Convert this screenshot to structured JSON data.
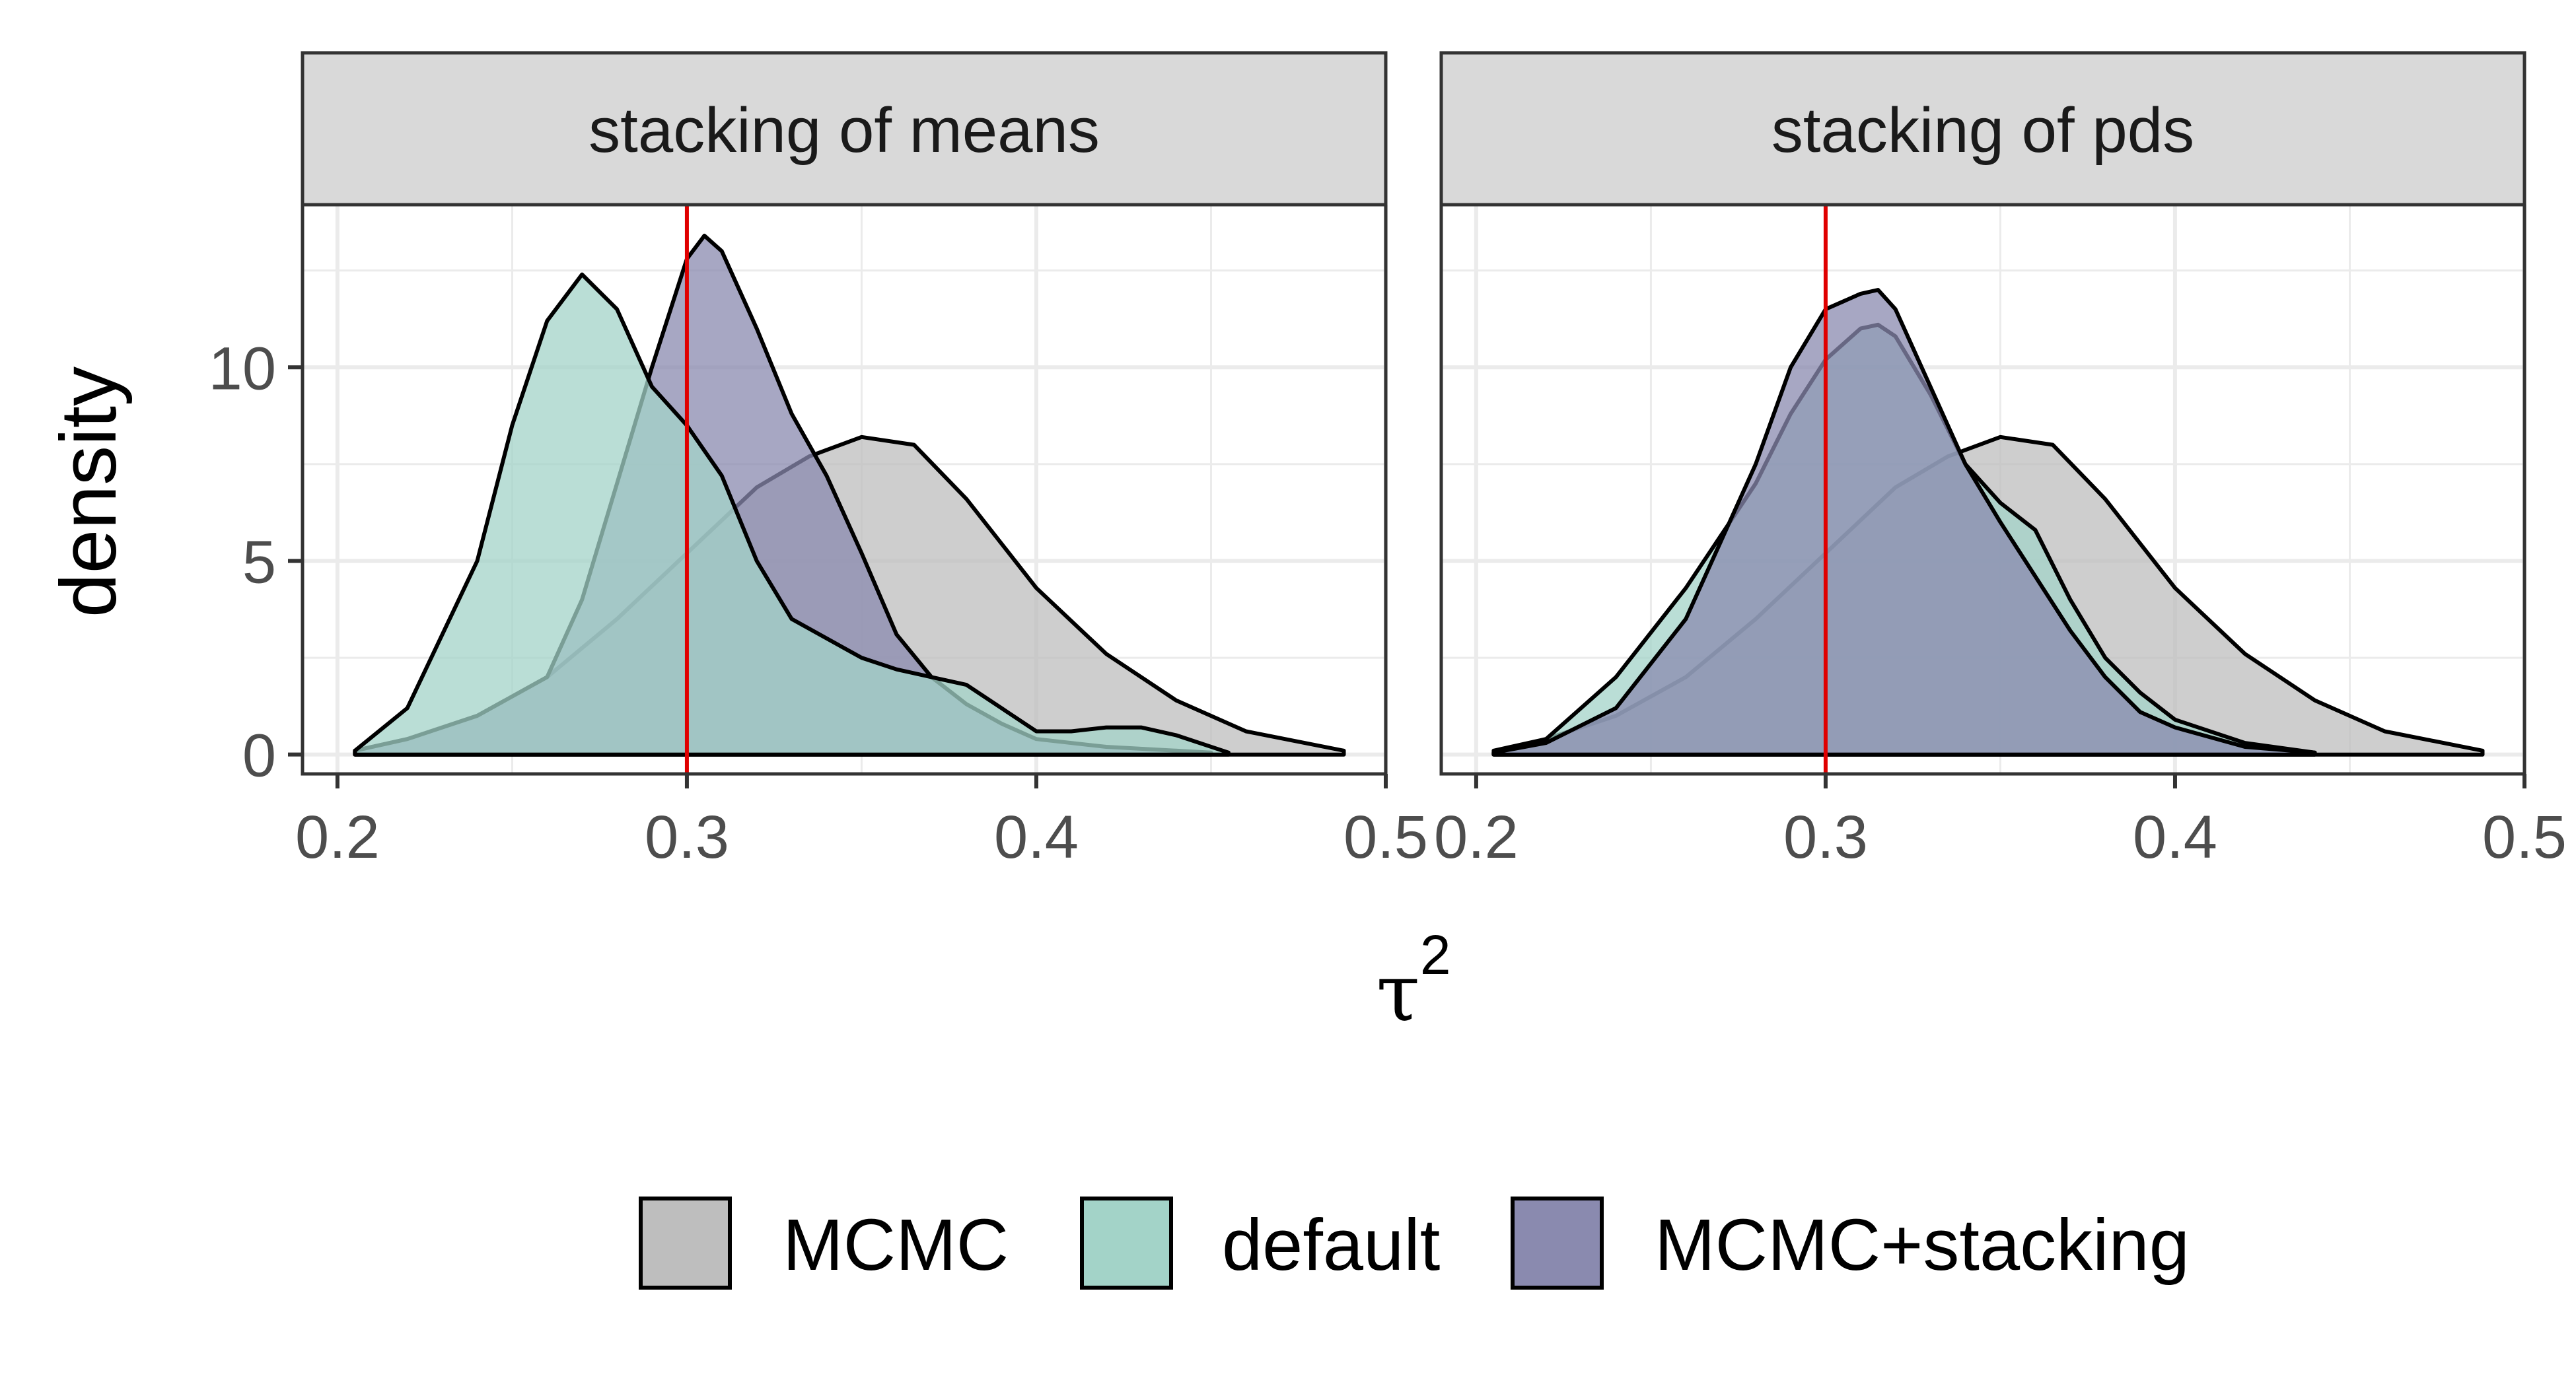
{
  "chart_data": {
    "type": "area",
    "title": "",
    "xlabel_symbol": "τ",
    "xlabel_superscript": "2",
    "ylabel": "density",
    "xlim": [
      0.19,
      0.5
    ],
    "ylim": [
      -0.5,
      14.2
    ],
    "x_ticks": [
      0.2,
      0.3,
      0.4,
      0.5
    ],
    "x_tick_labels": [
      "0.2",
      "0.3",
      "0.4",
      "0.5"
    ],
    "y_ticks": [
      0,
      5,
      10
    ],
    "y_tick_labels": [
      "0",
      "5",
      "10"
    ],
    "reference_line": {
      "x": 0.3,
      "color": "#e00000"
    },
    "legend": [
      {
        "name": "MCMC",
        "color": "#bebebe"
      },
      {
        "name": "default",
        "color": "#a3d3c8"
      },
      {
        "name": "MCMC+stacking",
        "color": "#8a8aaf"
      }
    ],
    "panels": [
      {
        "label": "stacking of means",
        "series": [
          {
            "name": "MCMC",
            "x": [
              0.205,
              0.22,
              0.24,
              0.26,
              0.28,
              0.3,
              0.32,
              0.335,
              0.35,
              0.365,
              0.38,
              0.4,
              0.42,
              0.44,
              0.46,
              0.488
            ],
            "y": [
              0.1,
              0.4,
              1.0,
              2.0,
              3.5,
              5.2,
              6.9,
              7.7,
              8.2,
              8.0,
              6.6,
              4.3,
              2.6,
              1.4,
              0.6,
              0.1
            ]
          },
          {
            "name": "MCMC+stacking",
            "x": [
              0.205,
              0.22,
              0.24,
              0.26,
              0.27,
              0.28,
              0.29,
              0.3,
              0.305,
              0.31,
              0.32,
              0.33,
              0.34,
              0.35,
              0.36,
              0.37,
              0.38,
              0.39,
              0.4,
              0.42,
              0.45
            ],
            "y": [
              0.1,
              0.4,
              1.0,
              2.0,
              4.0,
              7.0,
              10.0,
              12.8,
              13.4,
              13.0,
              11.0,
              8.8,
              7.2,
              5.2,
              3.1,
              2.0,
              1.3,
              0.8,
              0.4,
              0.2,
              0.05
            ]
          },
          {
            "name": "default",
            "x": [
              0.205,
              0.22,
              0.24,
              0.25,
              0.26,
              0.27,
              0.28,
              0.29,
              0.3,
              0.31,
              0.32,
              0.33,
              0.34,
              0.35,
              0.36,
              0.37,
              0.38,
              0.39,
              0.4,
              0.41,
              0.42,
              0.43,
              0.44,
              0.455
            ],
            "y": [
              0.1,
              1.2,
              5.0,
              8.5,
              11.2,
              12.4,
              11.5,
              9.5,
              8.5,
              7.2,
              5.0,
              3.5,
              3.0,
              2.5,
              2.2,
              2.0,
              1.8,
              1.2,
              0.6,
              0.6,
              0.7,
              0.7,
              0.5,
              0.05
            ]
          }
        ]
      },
      {
        "label": "stacking of pds",
        "series": [
          {
            "name": "MCMC",
            "x": [
              0.205,
              0.22,
              0.24,
              0.26,
              0.28,
              0.3,
              0.32,
              0.335,
              0.35,
              0.365,
              0.38,
              0.4,
              0.42,
              0.44,
              0.46,
              0.488
            ],
            "y": [
              0.1,
              0.4,
              1.0,
              2.0,
              3.5,
              5.2,
              6.9,
              7.7,
              8.2,
              8.0,
              6.6,
              4.3,
              2.6,
              1.4,
              0.6,
              0.1
            ]
          },
          {
            "name": "default",
            "x": [
              0.205,
              0.22,
              0.24,
              0.26,
              0.28,
              0.29,
              0.3,
              0.31,
              0.315,
              0.32,
              0.33,
              0.34,
              0.35,
              0.36,
              0.37,
              0.38,
              0.39,
              0.4,
              0.42,
              0.44
            ],
            "y": [
              0.05,
              0.4,
              2.0,
              4.3,
              7.0,
              8.8,
              10.2,
              11.0,
              11.1,
              10.8,
              9.3,
              7.5,
              6.5,
              5.8,
              4.0,
              2.5,
              1.6,
              0.9,
              0.3,
              0.05
            ]
          },
          {
            "name": "MCMC+stacking",
            "x": [
              0.205,
              0.22,
              0.24,
              0.26,
              0.28,
              0.29,
              0.3,
              0.31,
              0.315,
              0.32,
              0.33,
              0.34,
              0.35,
              0.36,
              0.37,
              0.38,
              0.39,
              0.4,
              0.42,
              0.44
            ],
            "y": [
              0.05,
              0.3,
              1.2,
              3.5,
              7.5,
              10.0,
              11.5,
              11.9,
              12.0,
              11.5,
              9.5,
              7.5,
              6.0,
              4.6,
              3.2,
              2.0,
              1.1,
              0.7,
              0.2,
              0.05
            ]
          }
        ]
      }
    ]
  }
}
